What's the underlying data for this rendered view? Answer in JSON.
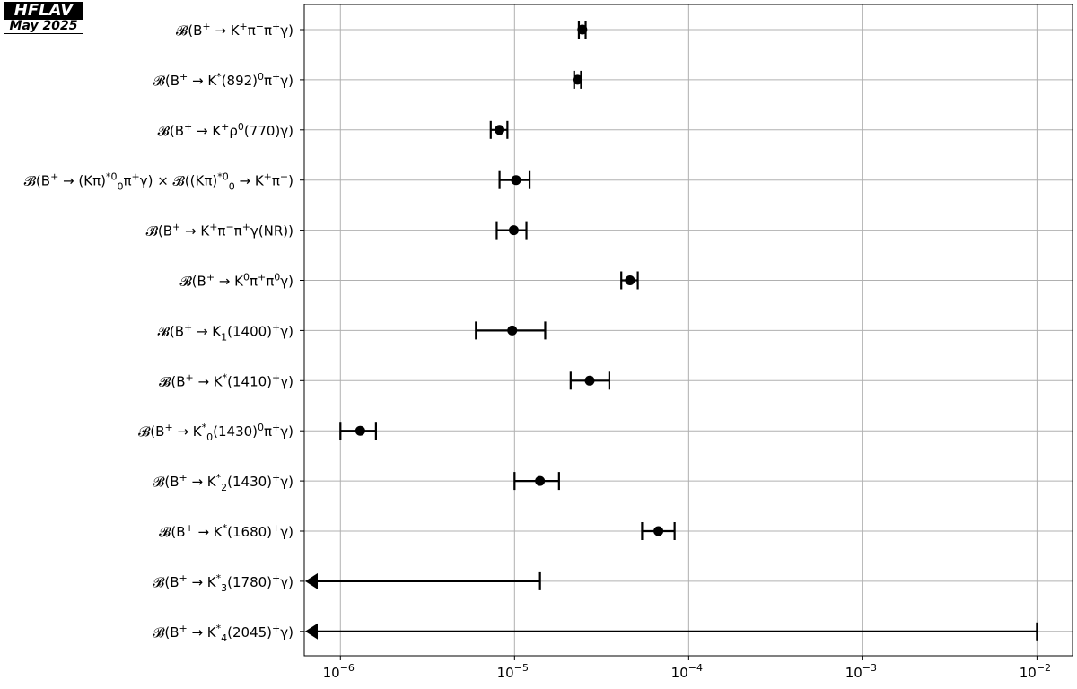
{
  "badge": {
    "title": "HFLAV",
    "date": "May 2025"
  },
  "chart_data": {
    "type": "scatter",
    "orientation": "horizontal",
    "x_scale": "log",
    "xlim": [
      6.2e-07,
      0.016
    ],
    "x_ticks": [
      1e-06,
      1e-05,
      0.0001,
      0.001,
      0.01
    ],
    "x_tick_labels": [
      {
        "base": "10",
        "exp": "−6"
      },
      {
        "base": "10",
        "exp": "−5"
      },
      {
        "base": "10",
        "exp": "−4"
      },
      {
        "base": "10",
        "exp": "−3"
      },
      {
        "base": "10",
        "exp": "−2"
      }
    ],
    "grid": true,
    "marker_color": "#000000",
    "grid_color": "#b0b0b0",
    "measurements": [
      {
        "label": [
          [
            "𝓑(B",
            ""
          ],
          [
            "+",
            "sup"
          ],
          [
            " → K",
            ""
          ],
          [
            "+",
            "sup"
          ],
          [
            "π",
            ""
          ],
          [
            "−",
            "sup"
          ],
          [
            "π",
            ""
          ],
          [
            "+",
            "sup"
          ],
          [
            "γ)",
            ""
          ]
        ],
        "value": 2.45e-05,
        "low": 2.34e-05,
        "high": 2.56e-05
      },
      {
        "label": [
          [
            "𝓑(B",
            ""
          ],
          [
            "+",
            "sup"
          ],
          [
            " → K",
            ""
          ],
          [
            "*",
            "sup"
          ],
          [
            "(892)",
            ""
          ],
          [
            "0",
            "sup"
          ],
          [
            "π",
            ""
          ],
          [
            "+",
            "sup"
          ],
          [
            "γ)",
            ""
          ]
        ],
        "value": 2.3e-05,
        "low": 2.2e-05,
        "high": 2.41e-05
      },
      {
        "label": [
          [
            "𝓑(B",
            ""
          ],
          [
            "+",
            "sup"
          ],
          [
            " → K",
            ""
          ],
          [
            "+",
            "sup"
          ],
          [
            "ρ",
            ""
          ],
          [
            "0",
            "sup"
          ],
          [
            "(770)γ)",
            ""
          ]
        ],
        "value": 8.2e-06,
        "low": 7.3e-06,
        "high": 9.1e-06
      },
      {
        "label": [
          [
            "𝓑(B",
            ""
          ],
          [
            "+",
            "sup"
          ],
          [
            " → (Kπ)",
            ""
          ],
          [
            "*0",
            "sup"
          ],
          [
            "0",
            "sub"
          ],
          [
            "π",
            ""
          ],
          [
            "+",
            "sup"
          ],
          [
            "γ) × 𝓑((Kπ)",
            ""
          ],
          [
            "*0",
            "sup"
          ],
          [
            "0",
            "sub"
          ],
          [
            " → K",
            ""
          ],
          [
            "+",
            "sup"
          ],
          [
            "π",
            ""
          ],
          [
            "−",
            "sup"
          ],
          [
            ")",
            ""
          ]
        ],
        "value": 1.02e-05,
        "low": 8.2e-06,
        "high": 1.22e-05
      },
      {
        "label": [
          [
            "𝓑(B",
            ""
          ],
          [
            "+",
            "sup"
          ],
          [
            " → K",
            ""
          ],
          [
            "+",
            "sup"
          ],
          [
            "π",
            ""
          ],
          [
            "−",
            "sup"
          ],
          [
            "π",
            ""
          ],
          [
            "+",
            "sup"
          ],
          [
            "γ(NR))",
            ""
          ]
        ],
        "value": 9.9e-06,
        "low": 7.9e-06,
        "high": 1.17e-05
      },
      {
        "label": [
          [
            "𝓑(B",
            ""
          ],
          [
            "+",
            "sup"
          ],
          [
            " → K",
            ""
          ],
          [
            "0",
            "sup"
          ],
          [
            "π",
            ""
          ],
          [
            "+",
            "sup"
          ],
          [
            "π",
            ""
          ],
          [
            "0",
            "sup"
          ],
          [
            "γ)",
            ""
          ]
        ],
        "value": 4.6e-05,
        "low": 4.1e-05,
        "high": 5.1e-05
      },
      {
        "label": [
          [
            "𝓑(B",
            ""
          ],
          [
            "+",
            "sup"
          ],
          [
            " → K",
            ""
          ],
          [
            "1",
            "sub"
          ],
          [
            "(1400)",
            ""
          ],
          [
            "+",
            "sup"
          ],
          [
            "γ)",
            ""
          ]
        ],
        "value": 9.7e-06,
        "low": 6e-06,
        "high": 1.5e-05
      },
      {
        "label": [
          [
            "𝓑(B",
            ""
          ],
          [
            "+",
            "sup"
          ],
          [
            " → K",
            ""
          ],
          [
            "*",
            "sup"
          ],
          [
            "(1410)",
            ""
          ],
          [
            "+",
            "sup"
          ],
          [
            "γ)",
            ""
          ]
        ],
        "value": 2.7e-05,
        "low": 2.1e-05,
        "high": 3.5e-05
      },
      {
        "label": [
          [
            "𝓑(B",
            ""
          ],
          [
            "+",
            "sup"
          ],
          [
            " → K",
            ""
          ],
          [
            "*",
            "sup"
          ],
          [
            "0",
            "sub"
          ],
          [
            "(1430)",
            ""
          ],
          [
            "0",
            "sup"
          ],
          [
            "π",
            ""
          ],
          [
            "+",
            "sup"
          ],
          [
            "γ)",
            ""
          ]
        ],
        "value": 1.3e-06,
        "low": 1e-06,
        "high": 1.6e-06
      },
      {
        "label": [
          [
            "𝓑(B",
            ""
          ],
          [
            "+",
            "sup"
          ],
          [
            " → K",
            ""
          ],
          [
            "*",
            "sup"
          ],
          [
            "2",
            "sub"
          ],
          [
            "(1430)",
            ""
          ],
          [
            "+",
            "sup"
          ],
          [
            "γ)",
            ""
          ]
        ],
        "value": 1.4e-05,
        "low": 1e-05,
        "high": 1.8e-05
      },
      {
        "label": [
          [
            "𝓑(B",
            ""
          ],
          [
            "+",
            "sup"
          ],
          [
            " → K",
            ""
          ],
          [
            "*",
            "sup"
          ],
          [
            "(1680)",
            ""
          ],
          [
            "+",
            "sup"
          ],
          [
            "γ)",
            ""
          ]
        ],
        "value": 6.7e-05,
        "low": 5.4e-05,
        "high": 8.3e-05
      },
      {
        "label": [
          [
            "𝓑(B",
            ""
          ],
          [
            "+",
            "sup"
          ],
          [
            " → K",
            ""
          ],
          [
            "*",
            "sup"
          ],
          [
            "3",
            "sub"
          ],
          [
            "(1780)",
            ""
          ],
          [
            "+",
            "sup"
          ],
          [
            "γ)",
            ""
          ]
        ],
        "upper_limit": 1.4e-05
      },
      {
        "label": [
          [
            "𝓑(B",
            ""
          ],
          [
            "+",
            "sup"
          ],
          [
            " → K",
            ""
          ],
          [
            "*",
            "sup"
          ],
          [
            "4",
            "sub"
          ],
          [
            "(2045)",
            ""
          ],
          [
            "+",
            "sup"
          ],
          [
            "γ)",
            ""
          ]
        ],
        "upper_limit": 0.01
      }
    ]
  }
}
